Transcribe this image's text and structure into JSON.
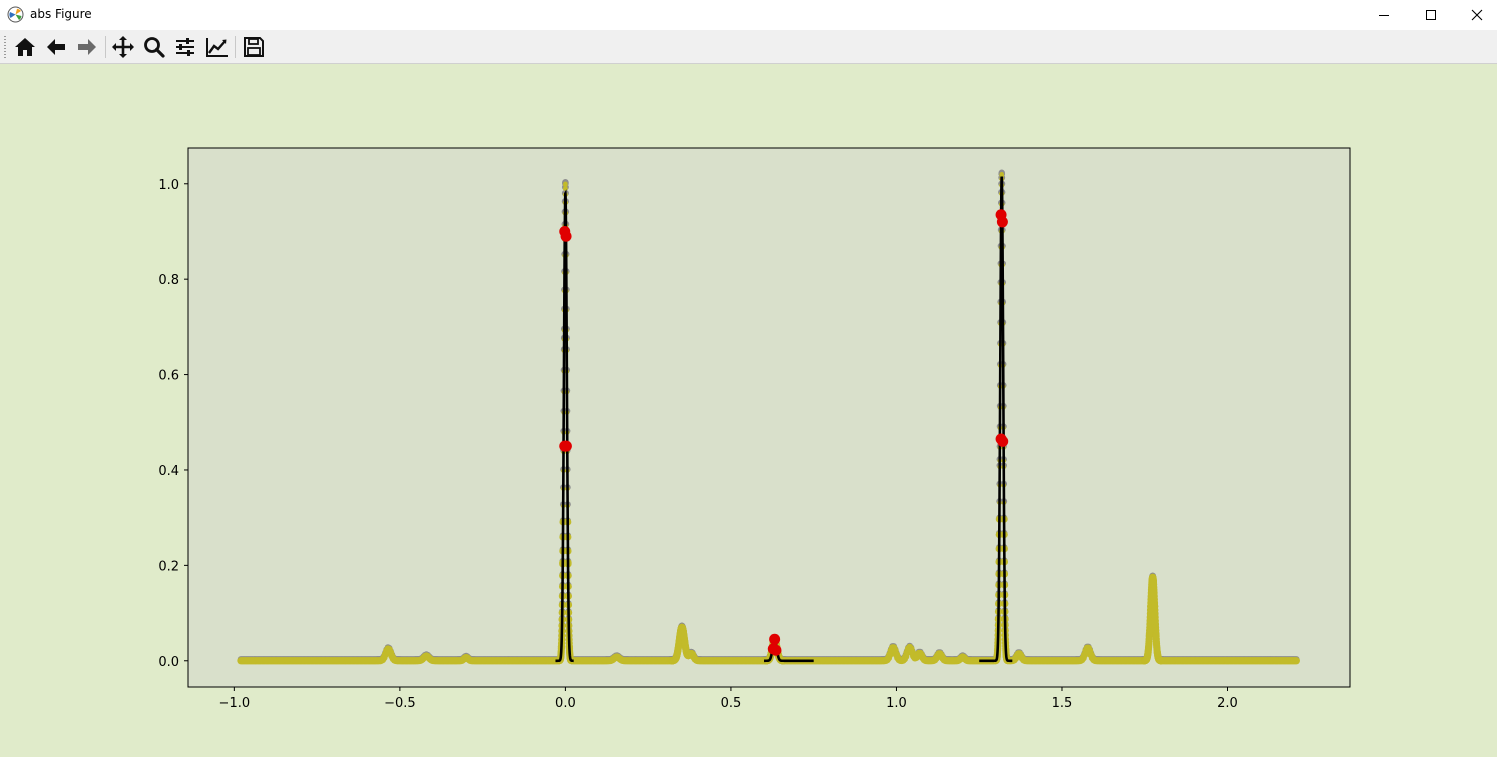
{
  "window": {
    "title": "abs Figure",
    "app_icon": "matplotlib-icon",
    "controls": [
      "minimize-icon",
      "maximize-icon",
      "close-icon"
    ]
  },
  "toolbar": {
    "buttons": [
      {
        "name": "home-button",
        "icon": "home-icon"
      },
      {
        "name": "back-button",
        "icon": "arrow-left-icon"
      },
      {
        "name": "forward-button",
        "icon": "arrow-right-icon"
      },
      {
        "name": "pan-button",
        "icon": "move-icon"
      },
      {
        "name": "zoom-button",
        "icon": "search-icon"
      },
      {
        "name": "configure-subplots-button",
        "icon": "sliders-icon"
      },
      {
        "name": "edit-axis-button",
        "icon": "chart-line-icon"
      },
      {
        "name": "save-button",
        "icon": "save-icon"
      }
    ]
  },
  "colors": {
    "figure_bg": "#e0ebca",
    "axes_bg": "#d9e0cb",
    "markers": "#c2bb2a",
    "underlay": "#8e8e8e",
    "fit_line": "#000000",
    "peak_points": "#e00000"
  },
  "chart_data": {
    "type": "line",
    "title": "",
    "xlabel": "",
    "ylabel": "",
    "xlim": [
      -1.14,
      2.37
    ],
    "ylim": [
      -0.055,
      1.075
    ],
    "xticks": [
      -1.0,
      -0.5,
      0.0,
      0.5,
      1.0,
      1.5,
      2.0
    ],
    "xtick_labels": [
      "−1.0",
      "−0.5",
      "0.0",
      "0.5",
      "1.0",
      "1.5",
      "2.0"
    ],
    "yticks": [
      0.0,
      0.2,
      0.4,
      0.6,
      0.8,
      1.0
    ],
    "ytick_labels": [
      "0.0",
      "0.2",
      "0.4",
      "0.6",
      "0.8",
      "1.0"
    ],
    "grid": false,
    "data_range": [
      -0.98,
      2.21
    ],
    "spectrum_peaks": [
      {
        "center": -0.535,
        "height": 0.025,
        "width": 0.008
      },
      {
        "center": -0.42,
        "height": 0.01,
        "width": 0.008
      },
      {
        "center": -0.3,
        "height": 0.007,
        "width": 0.006
      },
      {
        "center": 0.0,
        "height": 1.0,
        "width": 0.0045
      },
      {
        "center": 0.155,
        "height": 0.008,
        "width": 0.008
      },
      {
        "center": 0.352,
        "height": 0.07,
        "width": 0.008
      },
      {
        "center": 0.38,
        "height": 0.015,
        "width": 0.007
      },
      {
        "center": 0.632,
        "height": 0.045,
        "width": 0.007
      },
      {
        "center": 0.99,
        "height": 0.028,
        "width": 0.008
      },
      {
        "center": 1.04,
        "height": 0.028,
        "width": 0.008
      },
      {
        "center": 1.07,
        "height": 0.016,
        "width": 0.007
      },
      {
        "center": 1.13,
        "height": 0.015,
        "width": 0.007
      },
      {
        "center": 1.2,
        "height": 0.008,
        "width": 0.006
      },
      {
        "center": 1.318,
        "height": 1.02,
        "width": 0.0045
      },
      {
        "center": 1.37,
        "height": 0.015,
        "width": 0.007
      },
      {
        "center": 1.578,
        "height": 0.027,
        "width": 0.008
      },
      {
        "center": 1.774,
        "height": 0.175,
        "width": 0.0065
      }
    ],
    "fit_segments": [
      {
        "x_start": -0.03,
        "x_end": 0.025,
        "center": 0.0,
        "height": 0.98,
        "width": 0.0045
      },
      {
        "x_start": 0.6,
        "x_end": 0.75,
        "center": 0.632,
        "height": 0.045,
        "width": 0.006
      },
      {
        "x_start": 1.25,
        "x_end": 1.35,
        "center": 1.318,
        "height": 1.015,
        "width": 0.0045
      }
    ],
    "peak_points": [
      {
        "x": -0.002,
        "y": 0.9
      },
      {
        "x": 0.002,
        "y": 0.89
      },
      {
        "x": -0.002,
        "y": 0.45
      },
      {
        "x": 0.003,
        "y": 0.45
      },
      {
        "x": 0.632,
        "y": 0.045
      },
      {
        "x": 0.628,
        "y": 0.025
      },
      {
        "x": 0.636,
        "y": 0.022
      },
      {
        "x": 1.316,
        "y": 0.935
      },
      {
        "x": 1.32,
        "y": 0.92
      },
      {
        "x": 1.316,
        "y": 0.465
      },
      {
        "x": 1.321,
        "y": 0.46
      }
    ]
  }
}
